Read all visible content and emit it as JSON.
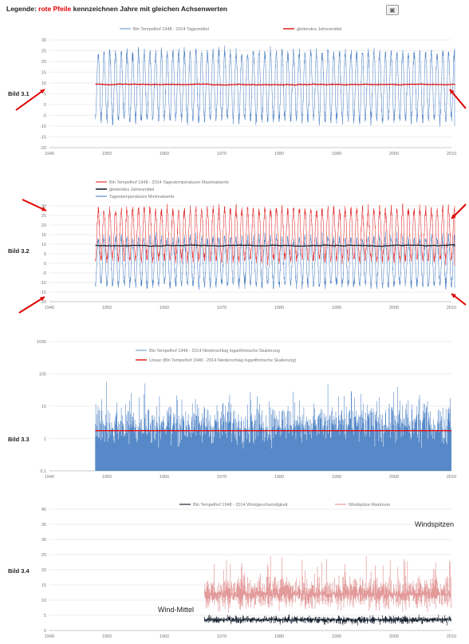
{
  "header": {
    "legend_prefix": "Legende:",
    "legend_highlight": "rote Pfeile",
    "legend_rest": "kennzeichnen Jahre mit gleichen Achsenwerten",
    "icon": "image-icon"
  },
  "colors": {
    "blue": "#3a74be",
    "red": "#e01010",
    "dark": "#1b2433",
    "pink": "#e39a9a",
    "grid": "#dddddd",
    "arrow": "#e00000"
  },
  "chart_data": [
    {
      "id": "bild-3-1",
      "label": "Bild 3.1",
      "type": "line",
      "legend": [
        "Bln Tempelhof 1948 - 2014 Tagesmittel",
        "gleitendes Jahresmittel"
      ],
      "x_ticks": [
        "1940",
        "1950",
        "1960",
        "1970",
        "1980",
        "1990",
        "2000",
        "2010"
      ],
      "y_ticks": [
        "-20",
        "-15",
        "-10",
        "-5",
        "0",
        "5",
        "10",
        "15",
        "20",
        "25",
        "30"
      ],
      "ylim": [
        -20,
        30
      ],
      "xlim": [
        1940,
        2010
      ],
      "series": [
        {
          "role": "daily mean",
          "color": "#3a74be",
          "x_start": 1948,
          "x_end": 2014,
          "seasonal_min": -7,
          "seasonal_max": 24,
          "noise": 4
        },
        {
          "role": "moving annual mean",
          "color": "#e01010",
          "x_start": 1948,
          "x_end": 2014,
          "mean": 9.3,
          "variation": 0.6
        }
      ],
      "arrows": [
        "left-down",
        "right-down"
      ]
    },
    {
      "id": "bild-3-2",
      "label": "Bild 3.2",
      "type": "line",
      "legend": [
        "Bln Tempelhof 1948 - 2014 Tagestemperaturen Maximalwerte",
        "gleitendes Jahresmittel",
        "Tagestemperaturen Minimalwerte"
      ],
      "x_ticks": [
        "1940",
        "1950",
        "1960",
        "1970",
        "1980",
        "1990",
        "2000",
        "2010"
      ],
      "y_ticks": [
        "-20",
        "-15",
        "-10",
        "-5",
        "0",
        "5",
        "10",
        "15",
        "20",
        "25",
        "30"
      ],
      "ylim": [
        -20,
        30
      ],
      "xlim": [
        1940,
        2010
      ],
      "series": [
        {
          "role": "daily maximum",
          "color": "#e01010",
          "x_start": 1948,
          "x_end": 2014,
          "seasonal_min": 2,
          "seasonal_max": 28,
          "noise": 4
        },
        {
          "role": "daily minimum",
          "color": "#3a74be",
          "x_start": 1948,
          "x_end": 2014,
          "seasonal_min": -11,
          "seasonal_max": 13,
          "noise": 4
        },
        {
          "role": "moving annual mean",
          "color": "#1b2433",
          "x_start": 1948,
          "x_end": 2014,
          "mean": 9.3,
          "variation": 0.7
        }
      ],
      "arrows": [
        "left-up",
        "left-down",
        "right-up",
        "right-down"
      ]
    },
    {
      "id": "bild-3-3",
      "label": "Bild 3.3",
      "type": "bar",
      "legend": [
        "Bln Tempelhof 1948 - 2014 Niederschlag logarithmische Skalierung",
        "Linear (Bln Tempelhof 1948 - 2014 Niederschlag logarithmische Skalierung)"
      ],
      "x_ticks": [
        "1940",
        "1950",
        "1960",
        "1970",
        "1980",
        "1990",
        "2000",
        "2010"
      ],
      "y_ticks": [
        "0,1",
        "1",
        "10",
        "100",
        "1000"
      ],
      "ylim": [
        0.1,
        1000
      ],
      "y_scale": "log",
      "xlim": [
        1940,
        2010
      ],
      "series": [
        {
          "role": "daily precipitation",
          "color": "#3a74be",
          "x_start": 1948,
          "x_end": 2014
        },
        {
          "role": "linear trend",
          "color": "#e01010",
          "value": 1.75
        }
      ]
    },
    {
      "id": "bild-3-4",
      "label": "Bild 3.4",
      "type": "line",
      "legend": [
        "Bln Tempelhof 1948 - 2014 Windgeschwindigkeit",
        "Windspitze Maximum"
      ],
      "x_ticks": [
        "1940",
        "1950",
        "1960",
        "1970",
        "1980",
        "1990",
        "2000",
        "2010"
      ],
      "y_ticks": [
        "0",
        "5",
        "10",
        "15",
        "20",
        "25",
        "30",
        "35",
        "40"
      ],
      "ylim": [
        0,
        40
      ],
      "xlim": [
        1940,
        2010
      ],
      "series": [
        {
          "role": "wind peaks",
          "color": "#e39a9a",
          "x_start": 1967,
          "x_end": 2014,
          "base": 12,
          "spread": 9
        },
        {
          "role": "wind mean",
          "color": "#1b2433",
          "x_start": 1967,
          "x_end": 2014,
          "base": 3.5,
          "spread": 2
        }
      ],
      "annotations": [
        "Windspitzen",
        "Wind-Mittel"
      ]
    }
  ]
}
